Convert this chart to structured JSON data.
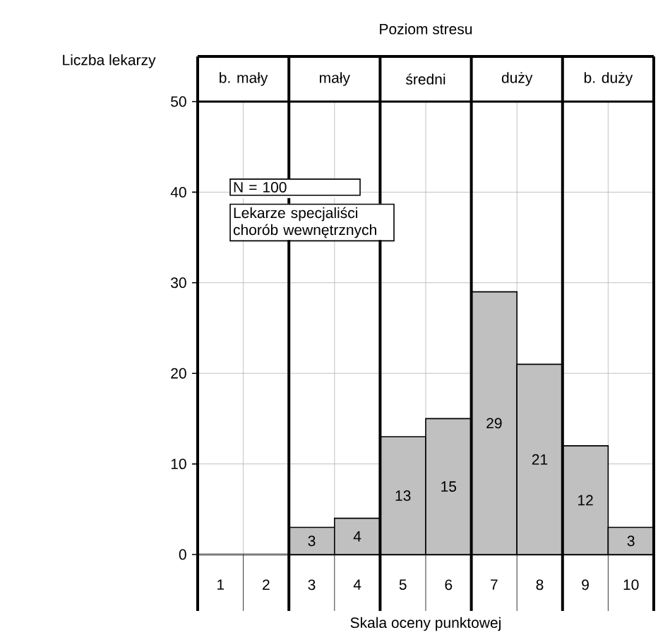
{
  "chart_data": {
    "type": "bar",
    "title": "Poziom stresu",
    "xlabel": "Skala oceny punktowej",
    "ylabel": "Liczba lekarzy",
    "categories": [
      "1",
      "2",
      "3",
      "4",
      "5",
      "6",
      "7",
      "8",
      "9",
      "10"
    ],
    "values": [
      0,
      0,
      3,
      4,
      13,
      15,
      29,
      21,
      12,
      3
    ],
    "value_labels": [
      null,
      null,
      "3",
      "4",
      "13",
      "15",
      "29",
      "21",
      "12",
      "3"
    ],
    "color": "#c0c0c0",
    "ylim": [
      0,
      50
    ],
    "yticks": [
      0,
      10,
      20,
      30,
      40,
      50
    ],
    "grid": true,
    "annotations": [
      "b. mały",
      "mały",
      "średni",
      "duży",
      "b. duży",
      "N = 100",
      "Lekarze specjaliści chorób wewnętrznych"
    ]
  }
}
